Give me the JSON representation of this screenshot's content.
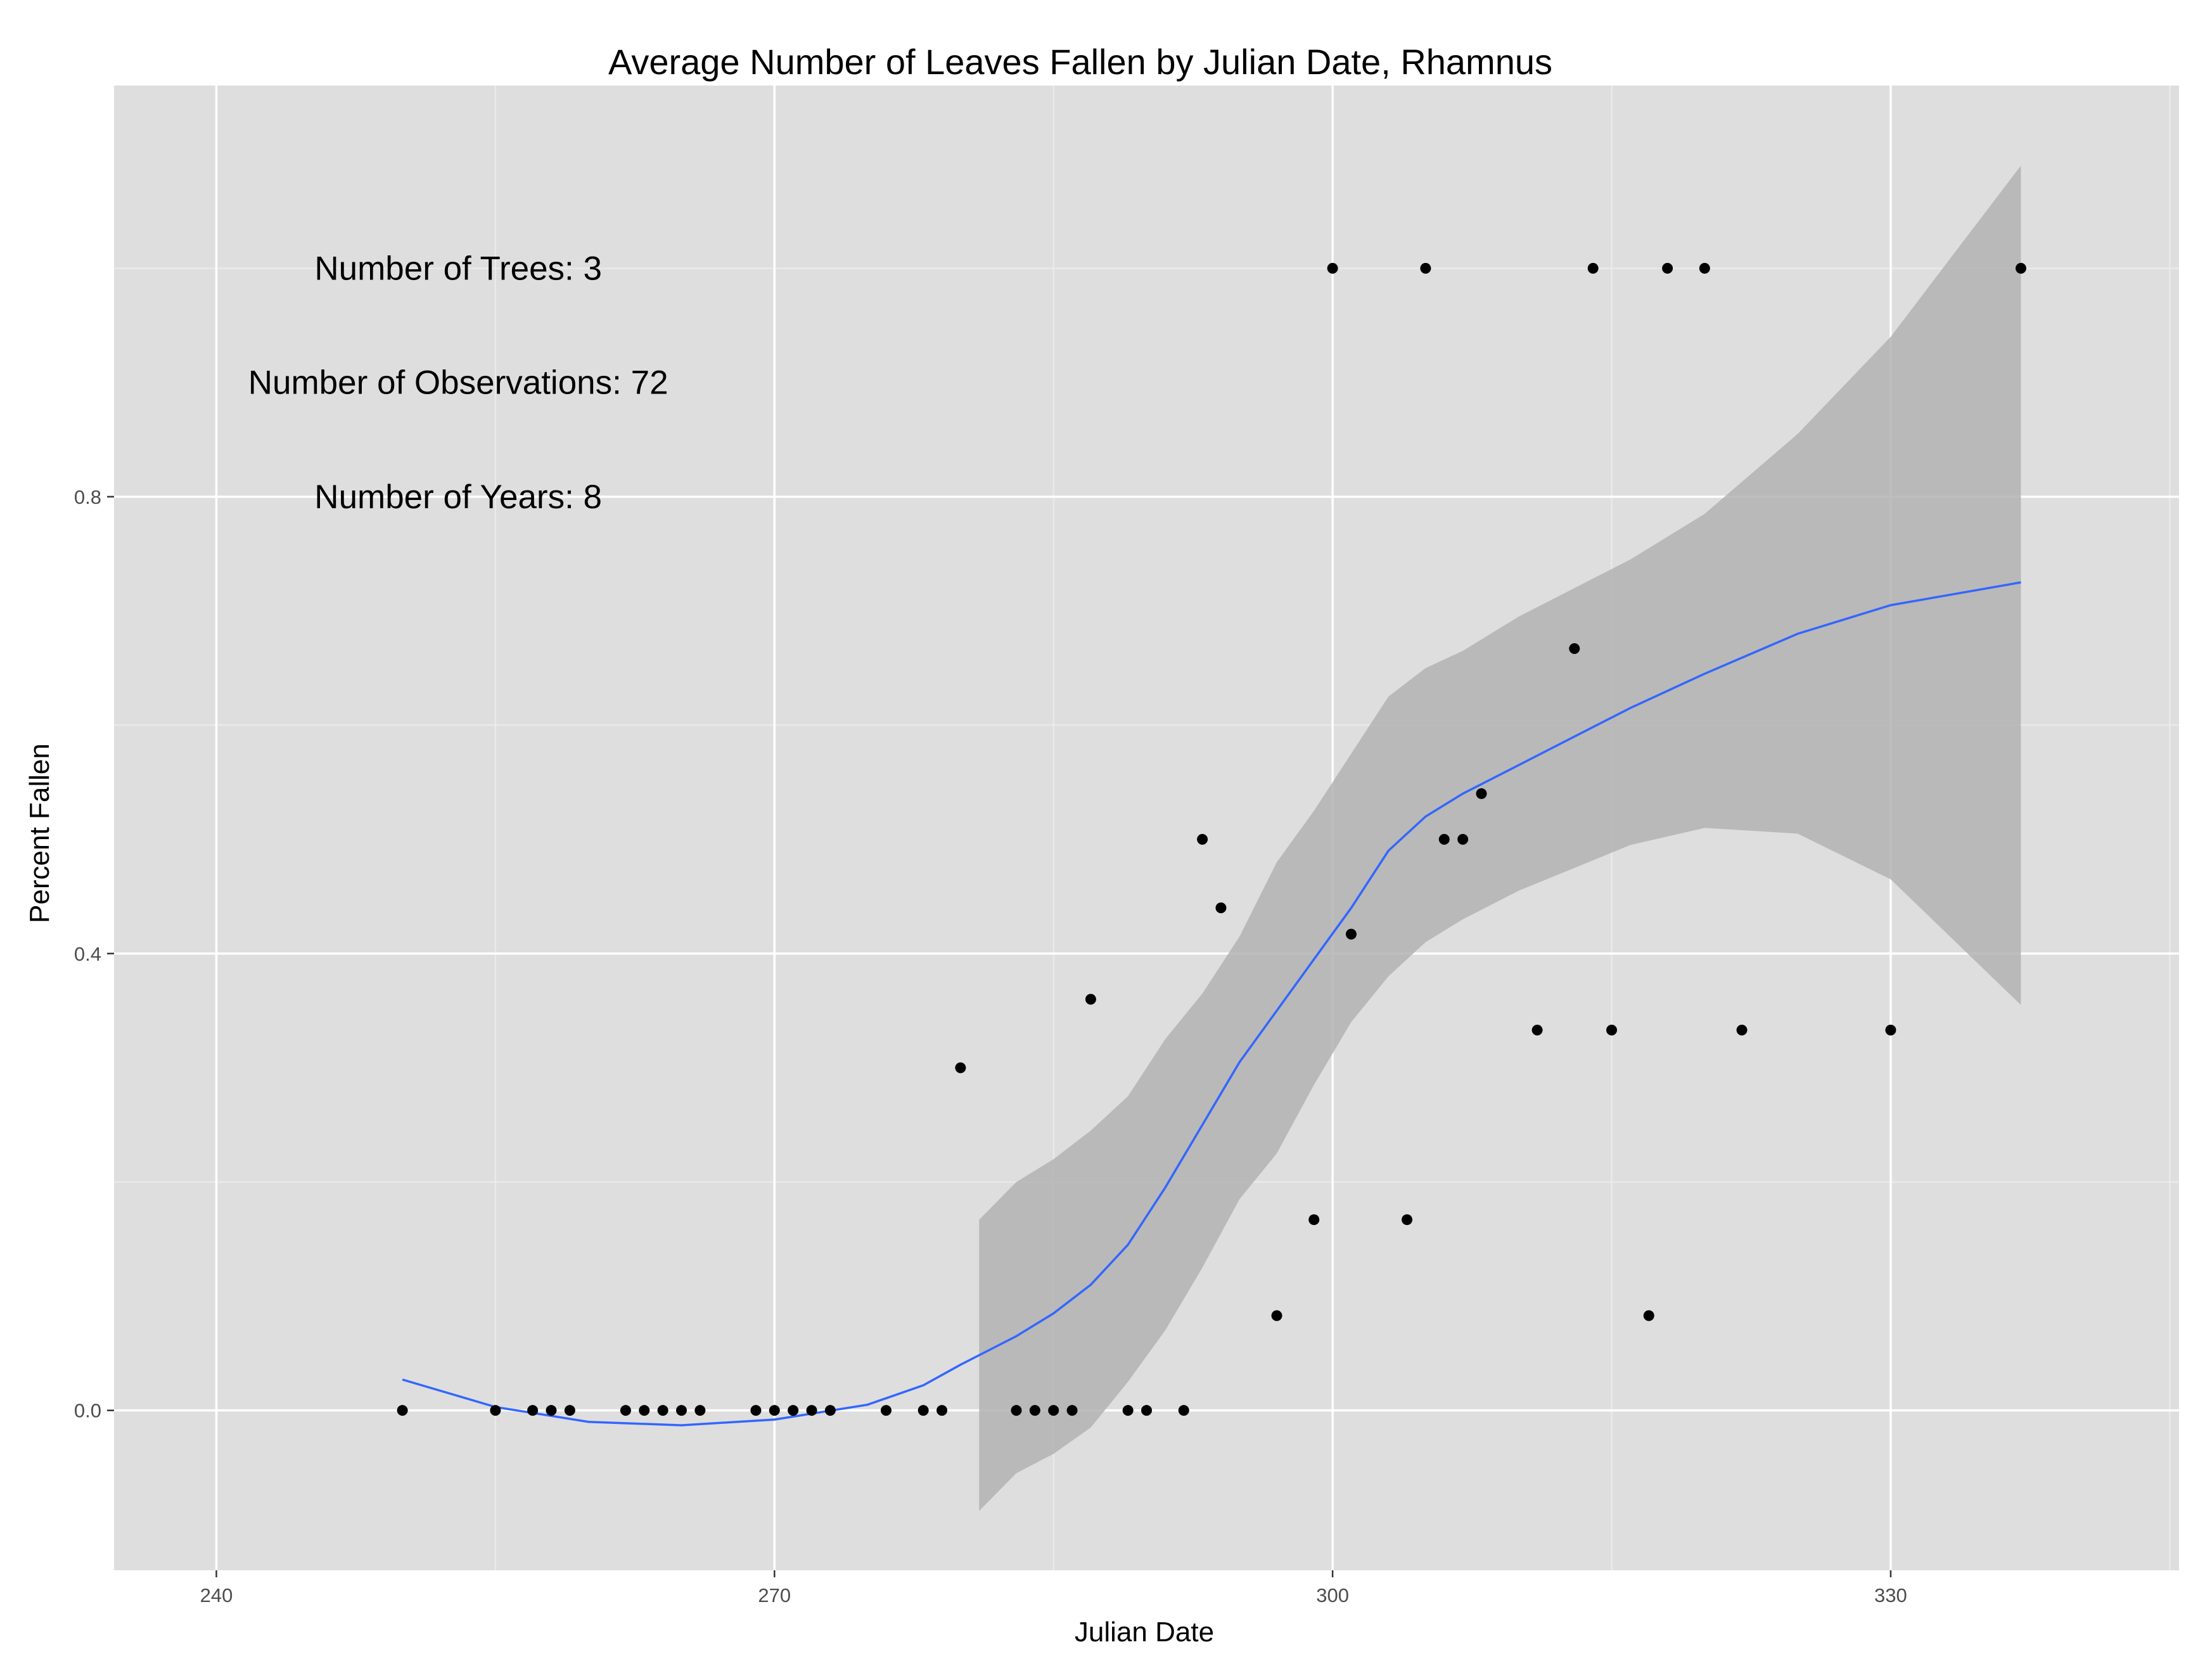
{
  "chart_data": {
    "type": "scatter",
    "title": "Average Number of Leaves Fallen by Julian Date, Rhamnus",
    "xlabel": "Julian Date",
    "ylabel": "Percent Fallen",
    "xlim": [
      234.5,
      345.5
    ],
    "ylim": [
      -0.14,
      1.16
    ],
    "x_ticks": [
      240,
      270,
      300,
      330
    ],
    "x_tick_labels": [
      "240",
      "270",
      "300",
      "330"
    ],
    "y_ticks": [
      0.0,
      0.4,
      0.8
    ],
    "y_tick_labels": [
      "0.0",
      "0.4",
      "0.8"
    ],
    "grid": true,
    "colors": {
      "panel": "#dedede",
      "grid_major": "#ffffff",
      "points": "#000000",
      "smooth_line": "#3366ff",
      "ribbon": "#b3b3b3"
    },
    "annotations": [
      {
        "text": "Number of Trees: 3",
        "x": 253,
        "y": 1.0
      },
      {
        "text": "Number of Observations: 72",
        "x": 253,
        "y": 0.9
      },
      {
        "text": "Number of Years: 8",
        "x": 253,
        "y": 0.8
      }
    ],
    "points": [
      [
        250,
        0
      ],
      [
        255,
        0
      ],
      [
        257,
        0
      ],
      [
        258,
        0
      ],
      [
        259,
        0
      ],
      [
        262,
        0
      ],
      [
        263,
        0
      ],
      [
        264,
        0
      ],
      [
        265,
        0
      ],
      [
        266,
        0
      ],
      [
        269,
        0
      ],
      [
        270,
        0
      ],
      [
        271,
        0
      ],
      [
        272,
        0
      ],
      [
        273,
        0
      ],
      [
        276,
        0
      ],
      [
        278,
        0
      ],
      [
        279,
        0
      ],
      [
        280,
        0.3
      ],
      [
        283,
        0
      ],
      [
        284,
        0
      ],
      [
        285,
        0
      ],
      [
        286,
        0
      ],
      [
        287,
        0.36
      ],
      [
        289,
        0
      ],
      [
        290,
        0
      ],
      [
        292,
        0
      ],
      [
        293,
        0.5
      ],
      [
        294,
        0.44
      ],
      [
        297,
        0.083
      ],
      [
        299,
        0.167
      ],
      [
        300,
        1.0
      ],
      [
        301,
        0.417
      ],
      [
        304,
        0.167
      ],
      [
        305,
        1.0
      ],
      [
        306,
        0.5
      ],
      [
        307,
        0.5
      ],
      [
        308,
        0.54
      ],
      [
        311,
        0.333
      ],
      [
        313,
        0.667
      ],
      [
        314,
        1.0
      ],
      [
        315,
        0.333
      ],
      [
        317,
        0.083
      ],
      [
        318,
        1.0
      ],
      [
        320,
        1.0
      ],
      [
        322,
        0.333
      ],
      [
        330,
        0.333
      ],
      [
        337,
        1.0
      ]
    ],
    "smooth": {
      "x": [
        250,
        255,
        260,
        265,
        270,
        275,
        278,
        280,
        283,
        285,
        287,
        289,
        291,
        293,
        295,
        297,
        299,
        301,
        303,
        305,
        307,
        310,
        313,
        316,
        320,
        325,
        330,
        337
      ],
      "y": [
        0.027,
        0.003,
        -0.01,
        -0.013,
        -0.008,
        0.005,
        0.022,
        0.04,
        0.065,
        0.085,
        0.11,
        0.145,
        0.195,
        0.25,
        0.305,
        0.35,
        0.395,
        0.44,
        0.49,
        0.52,
        0.54,
        0.565,
        0.59,
        0.615,
        0.645,
        0.68,
        0.705,
        0.725
      ]
    },
    "confidence_band": {
      "x": [
        281,
        283,
        285,
        287,
        289,
        291,
        293,
        295,
        297,
        299,
        301,
        303,
        305,
        307,
        310,
        313,
        316,
        320,
        325,
        330,
        337
      ],
      "upper": [
        0.167,
        0.2,
        0.22,
        0.245,
        0.275,
        0.325,
        0.365,
        0.415,
        0.48,
        0.525,
        0.575,
        0.625,
        0.65,
        0.665,
        0.695,
        0.72,
        0.745,
        0.785,
        0.855,
        0.94,
        1.09
      ],
      "lower": [
        -0.088,
        -0.055,
        -0.038,
        -0.015,
        0.025,
        0.07,
        0.125,
        0.185,
        0.225,
        0.285,
        0.34,
        0.38,
        0.41,
        0.43,
        0.455,
        0.475,
        0.495,
        0.51,
        0.505,
        0.465,
        0.355
      ]
    }
  }
}
